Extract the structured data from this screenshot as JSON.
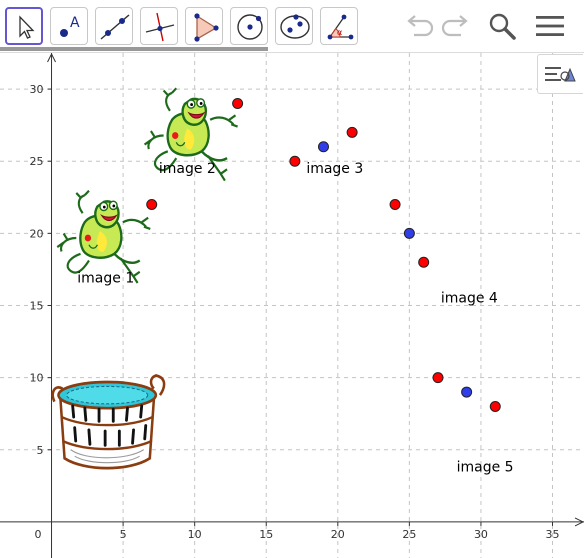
{
  "toolbar": {
    "tools": [
      {
        "name": "move-tool-button",
        "icon": "arrow-cursor-icon",
        "selected": true
      },
      {
        "name": "point-tool-button",
        "icon": "point-a-icon",
        "selected": false,
        "glyph": "A"
      },
      {
        "name": "line-tool-button",
        "icon": "line-through-points-icon",
        "selected": false
      },
      {
        "name": "perpendicular-line-tool-button",
        "icon": "perpendicular-line-icon",
        "selected": false
      },
      {
        "name": "polygon-tool-button",
        "icon": "polygon-icon",
        "selected": false
      },
      {
        "name": "circle-tool-button",
        "icon": "circle-center-point-icon",
        "selected": false
      },
      {
        "name": "conic-tool-button",
        "icon": "ellipse-icon",
        "selected": false
      },
      {
        "name": "angle-tool-button",
        "icon": "angle-icon",
        "selected": false,
        "glyph": "α"
      }
    ],
    "right": [
      {
        "name": "undo-button",
        "icon": "undo-icon"
      },
      {
        "name": "redo-button",
        "icon": "redo-icon"
      },
      {
        "name": "search-button",
        "icon": "search-icon"
      },
      {
        "name": "menu-button",
        "icon": "hamburger-menu-icon"
      }
    ]
  },
  "colors": {
    "accent": "#6557d2",
    "red_point": "#ff0000",
    "blue_point": "#2f3ee8",
    "grid": "#c4c4c4"
  },
  "axes": {
    "x": {
      "min": -3.6,
      "max": 37.2,
      "ticks": [
        5,
        10,
        15,
        20,
        25,
        30,
        35
      ]
    },
    "y": {
      "min": -2.5,
      "max": 32.5,
      "ticks": [
        5,
        10,
        15,
        20,
        25,
        30
      ]
    },
    "origin_label": "0",
    "grid": true
  },
  "labels": [
    {
      "name": "image-1-label",
      "text": "image 1",
      "x": 1.8,
      "y": 16.6
    },
    {
      "name": "image-2-label",
      "text": "image 2",
      "x": 7.5,
      "y": 24.2
    },
    {
      "name": "image-3-label",
      "text": "image 3",
      "x": 17.8,
      "y": 24.2
    },
    {
      "name": "image-4-label",
      "text": "image 4",
      "x": 27.2,
      "y": 15.2
    },
    {
      "name": "image-5-label",
      "text": "image 5",
      "x": 28.3,
      "y": 3.5
    }
  ],
  "points": [
    {
      "x": 7,
      "y": 22,
      "color": "red"
    },
    {
      "x": 13,
      "y": 29,
      "color": "red"
    },
    {
      "x": 17,
      "y": 25,
      "color": "red"
    },
    {
      "x": 19,
      "y": 26,
      "color": "blue"
    },
    {
      "x": 21,
      "y": 27,
      "color": "red"
    },
    {
      "x": 24,
      "y": 22,
      "color": "red"
    },
    {
      "x": 25,
      "y": 20,
      "color": "blue"
    },
    {
      "x": 26,
      "y": 18,
      "color": "red"
    },
    {
      "x": 27,
      "y": 10,
      "color": "red"
    },
    {
      "x": 29,
      "y": 9,
      "color": "blue"
    },
    {
      "x": 31,
      "y": 8,
      "color": "red"
    }
  ],
  "images": [
    {
      "name": "frog-image-1",
      "kind": "frog",
      "x": 0.4,
      "y": 16.4,
      "w": 6.5,
      "h": 6.4
    },
    {
      "name": "frog-image-2",
      "kind": "frog",
      "x": 6.5,
      "y": 23.5,
      "w": 6.5,
      "h": 6.4
    },
    {
      "name": "washtub-image",
      "kind": "tub",
      "x": 0.2,
      "y": 3.5,
      "w": 7.8,
      "h": 6.8
    }
  ]
}
